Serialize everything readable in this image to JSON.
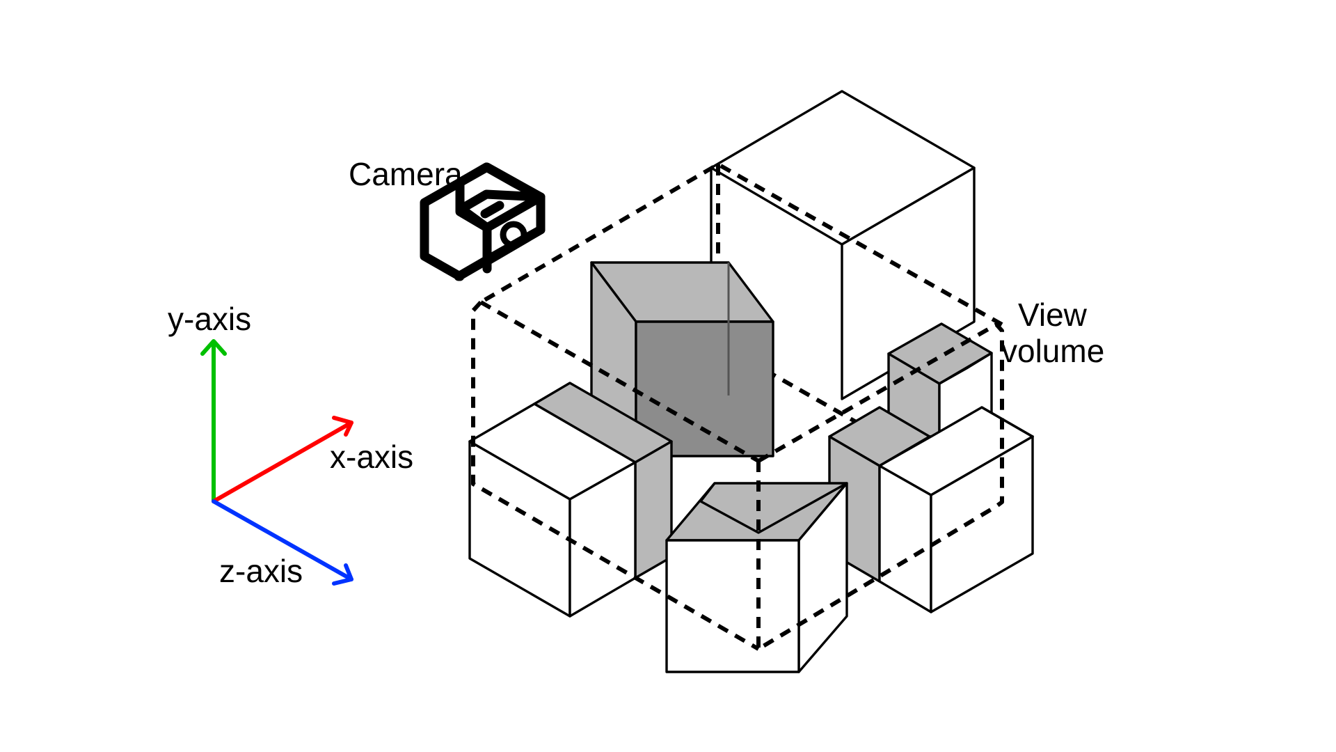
{
  "labels": {
    "camera": "Camera",
    "view_volume_line1": "View",
    "view_volume_line2": "volume",
    "y_axis": "y-axis",
    "x_axis": "x-axis",
    "z_axis": "z-axis"
  },
  "icons": {
    "camera": "camera-icon"
  },
  "colors": {
    "x_axis": "#ff0000",
    "y_axis": "#00c000",
    "z_axis": "#0033ff",
    "shade_light": "#b8b8b8",
    "shade_dark": "#8c8c8c",
    "line": "#000000",
    "background": "#ffffff"
  }
}
